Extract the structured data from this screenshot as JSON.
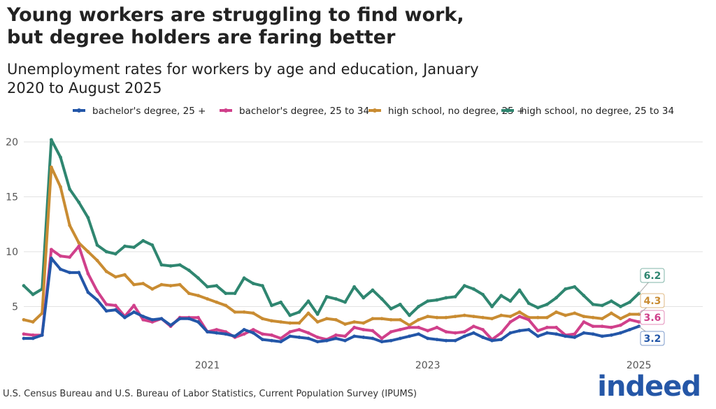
{
  "title": "Young workers are struggling to find work, but degree holders are faring better",
  "subtitle": "Unemployment rates for workers by age and education, January 2020 to August 2025",
  "source": "U.S. Census Bureau and U.S. Bureau of Labor Statistics, Current Population Survey (IPUMS)",
  "logo_text": "indeed",
  "chart_data": {
    "type": "line",
    "title": "Young workers are struggling to find work, but degree holders are faring better",
    "subtitle": "Unemployment rates for workers by age and education, January 2020 to August 2025",
    "xlabel": "",
    "ylabel": "",
    "ylim": [
      0,
      21
    ],
    "yticks": [
      5,
      10,
      15,
      20
    ],
    "xticks": [
      {
        "label": "2021",
        "x": "2021-09"
      },
      {
        "label": "2023",
        "x": "2023-09"
      },
      {
        "label": "2025",
        "x": "2025-08"
      }
    ],
    "grid": "horizontal",
    "legend": "top",
    "x": [
      "2020-01",
      "2020-02",
      "2020-03",
      "2020-04",
      "2020-05",
      "2020-06",
      "2020-07",
      "2020-08",
      "2020-09",
      "2020-10",
      "2020-11",
      "2020-12",
      "2021-01",
      "2021-02",
      "2021-03",
      "2021-04",
      "2021-05",
      "2021-06",
      "2021-07",
      "2021-08",
      "2021-09",
      "2021-10",
      "2021-11",
      "2021-12",
      "2022-01",
      "2022-02",
      "2022-03",
      "2022-04",
      "2022-05",
      "2022-06",
      "2022-07",
      "2022-08",
      "2022-09",
      "2022-10",
      "2022-11",
      "2022-12",
      "2023-01",
      "2023-02",
      "2023-03",
      "2023-04",
      "2023-05",
      "2023-06",
      "2023-07",
      "2023-08",
      "2023-09",
      "2023-10",
      "2023-11",
      "2023-12",
      "2024-01",
      "2024-02",
      "2024-03",
      "2024-04",
      "2024-05",
      "2024-06",
      "2024-07",
      "2024-08",
      "2024-09",
      "2024-10",
      "2024-11",
      "2024-12",
      "2025-01",
      "2025-02",
      "2025-03",
      "2025-04",
      "2025-05",
      "2025-06",
      "2025-07",
      "2025-08"
    ],
    "series": [
      {
        "name": "bachelor's degree, 25 +",
        "color": "#2356a8",
        "end_label": "3.2",
        "values": [
          2.1,
          2.1,
          2.4,
          9.4,
          8.4,
          8.1,
          8.1,
          6.3,
          5.6,
          4.6,
          4.7,
          4.0,
          4.5,
          4.1,
          3.8,
          3.9,
          3.3,
          3.9,
          3.9,
          3.6,
          2.7,
          2.6,
          2.5,
          2.3,
          2.9,
          2.6,
          2.0,
          1.9,
          1.8,
          2.3,
          2.2,
          2.1,
          1.8,
          1.9,
          2.1,
          1.9,
          2.3,
          2.2,
          2.1,
          1.8,
          1.9,
          2.1,
          2.3,
          2.5,
          2.1,
          2.0,
          1.9,
          1.9,
          2.3,
          2.6,
          2.2,
          1.9,
          2.0,
          2.6,
          2.8,
          2.9,
          2.3,
          2.6,
          2.5,
          2.3,
          2.2,
          2.6,
          2.5,
          2.3,
          2.4,
          2.6,
          2.9,
          3.2
        ]
      },
      {
        "name": "bachelor's degree, 25 to 34",
        "color": "#d0408b",
        "end_label": "3.6",
        "values": [
          2.5,
          2.4,
          2.4,
          10.2,
          9.6,
          9.5,
          10.5,
          8.0,
          6.4,
          5.2,
          5.1,
          4.1,
          5.1,
          3.8,
          3.6,
          3.9,
          3.2,
          4.0,
          4.0,
          4.0,
          2.7,
          2.9,
          2.7,
          2.2,
          2.5,
          2.9,
          2.5,
          2.4,
          2.1,
          2.7,
          2.9,
          2.6,
          2.2,
          2.0,
          2.4,
          2.3,
          3.1,
          2.9,
          2.8,
          2.1,
          2.7,
          2.9,
          3.1,
          3.1,
          2.8,
          3.1,
          2.7,
          2.6,
          2.7,
          3.2,
          2.9,
          2.0,
          2.6,
          3.6,
          4.1,
          3.8,
          2.8,
          3.1,
          3.1,
          2.4,
          2.5,
          3.6,
          3.2,
          3.2,
          3.1,
          3.3,
          3.8,
          3.6
        ]
      },
      {
        "name": "high school, no degree, 25 +",
        "color": "#c98c32",
        "end_label": "4.3",
        "values": [
          3.8,
          3.6,
          4.4,
          17.7,
          15.9,
          12.4,
          10.8,
          10.0,
          9.2,
          8.2,
          7.7,
          7.9,
          7.0,
          7.1,
          6.6,
          7.0,
          6.9,
          7.0,
          6.2,
          6.0,
          5.7,
          5.4,
          5.1,
          4.5,
          4.5,
          4.4,
          3.9,
          3.7,
          3.6,
          3.5,
          3.5,
          4.4,
          3.6,
          3.9,
          3.8,
          3.4,
          3.6,
          3.5,
          3.9,
          3.9,
          3.8,
          3.8,
          3.3,
          3.8,
          4.1,
          4.0,
          4.0,
          4.1,
          4.2,
          4.1,
          4.0,
          3.9,
          4.2,
          4.1,
          4.5,
          4.0,
          4.0,
          4.0,
          4.5,
          4.2,
          4.4,
          4.1,
          4.0,
          3.9,
          4.4,
          3.9,
          4.3,
          4.3
        ]
      },
      {
        "name": "high school, no degree, 25 to 34",
        "color": "#2f8670",
        "end_label": "6.2",
        "values": [
          6.9,
          6.1,
          6.6,
          20.2,
          18.6,
          15.7,
          14.5,
          13.1,
          10.6,
          10.0,
          9.8,
          10.5,
          10.4,
          11.0,
          10.6,
          8.8,
          8.7,
          8.8,
          8.3,
          7.6,
          6.8,
          6.9,
          6.2,
          6.2,
          7.6,
          7.1,
          6.9,
          5.1,
          5.4,
          4.2,
          4.5,
          5.5,
          4.3,
          5.9,
          5.7,
          5.4,
          6.8,
          5.8,
          6.5,
          5.7,
          4.8,
          5.2,
          4.2,
          5.0,
          5.5,
          5.6,
          5.8,
          5.9,
          6.9,
          6.6,
          6.1,
          5.0,
          6.0,
          5.5,
          6.5,
          5.3,
          4.9,
          5.2,
          5.8,
          6.6,
          6.8,
          6.0,
          5.2,
          5.1,
          5.5,
          5.0,
          5.4,
          6.2
        ]
      }
    ]
  }
}
